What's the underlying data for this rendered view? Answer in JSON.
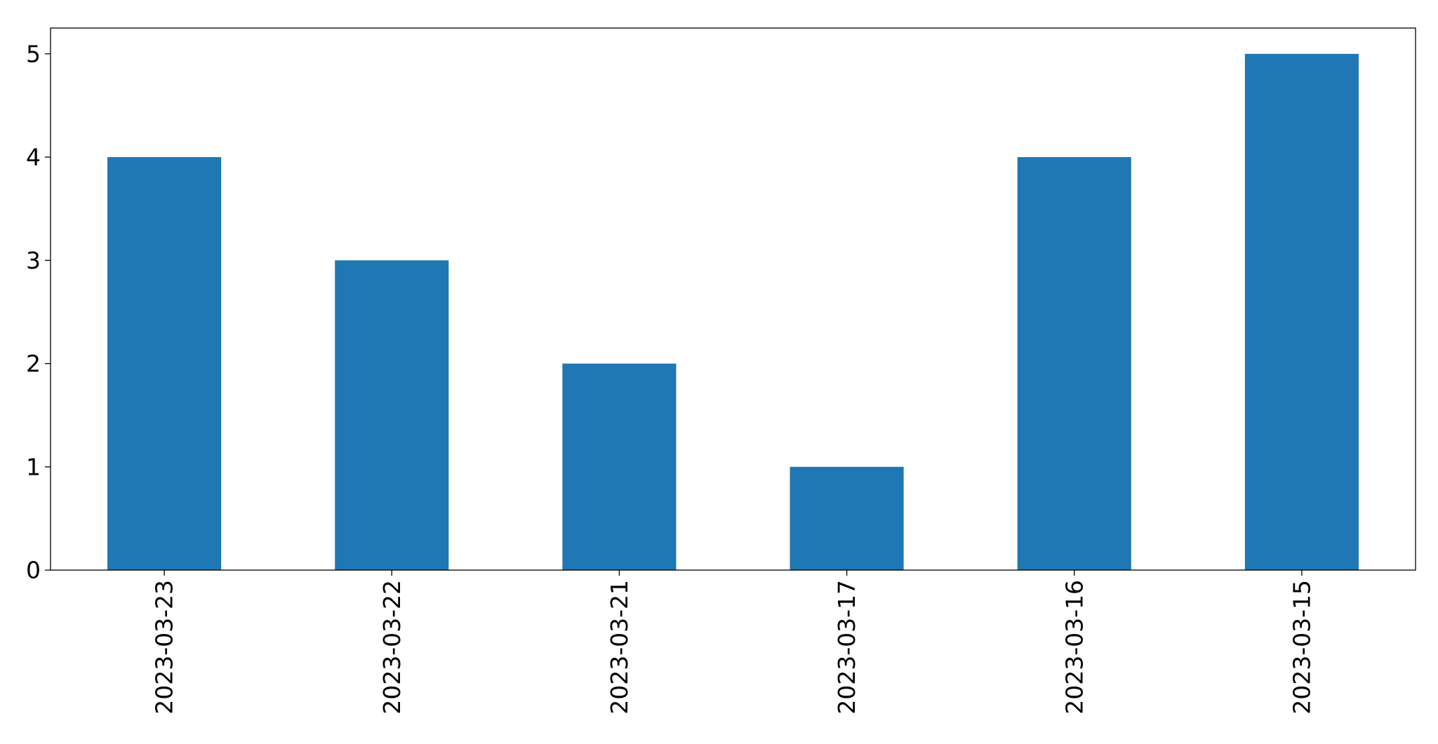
{
  "chart_data": {
    "type": "bar",
    "categories": [
      "2023-03-23",
      "2023-03-22",
      "2023-03-21",
      "2023-03-17",
      "2023-03-16",
      "2023-03-15"
    ],
    "values": [
      4,
      3,
      2,
      1,
      4,
      5
    ],
    "yticks": [
      0,
      1,
      2,
      3,
      4,
      5
    ],
    "ylim": [
      0,
      5.25
    ],
    "xlabel": "",
    "ylabel": "",
    "title": "",
    "grid": false,
    "bar_color": "#1f77b4",
    "x_tick_rotation": "vertical"
  }
}
